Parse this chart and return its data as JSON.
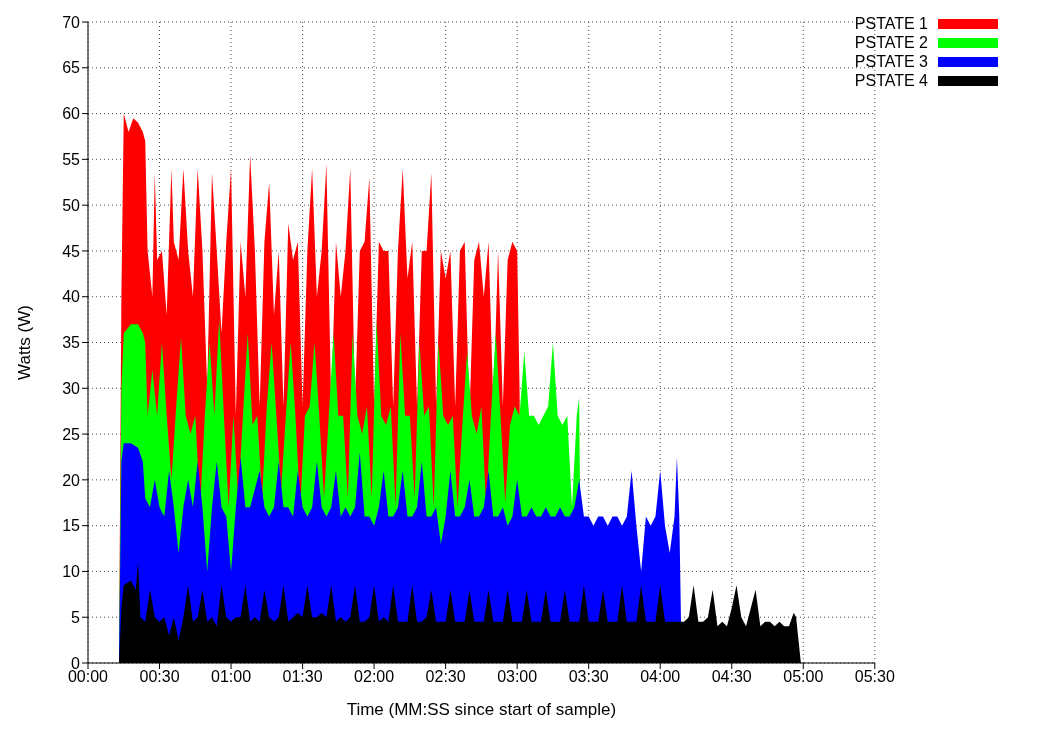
{
  "chart_data": {
    "type": "area",
    "xlabel": "Time (MM:SS since start of sample)",
    "ylabel": "Watts (W)",
    "xlim": [
      0,
      330
    ],
    "xticks": [
      {
        "value": 0,
        "label": "00:00"
      },
      {
        "value": 30,
        "label": "00:30"
      },
      {
        "value": 60,
        "label": "01:00"
      },
      {
        "value": 90,
        "label": "01:30"
      },
      {
        "value": 120,
        "label": "02:00"
      },
      {
        "value": 150,
        "label": "02:30"
      },
      {
        "value": 180,
        "label": "03:00"
      },
      {
        "value": 210,
        "label": "03:30"
      },
      {
        "value": 240,
        "label": "04:00"
      },
      {
        "value": 270,
        "label": "04:30"
      },
      {
        "value": 300,
        "label": "05:00"
      },
      {
        "value": 330,
        "label": "05:30"
      }
    ],
    "ylim": [
      0,
      70
    ],
    "yticks": [
      0,
      5,
      10,
      15,
      20,
      25,
      30,
      35,
      40,
      45,
      50,
      55,
      60,
      65,
      70
    ],
    "grid": true,
    "legend": "top right",
    "series": [
      {
        "name": "PSTATE 1",
        "color": "#ff0000",
        "x": [
          13,
          14,
          15,
          17,
          19,
          21,
          23,
          24,
          25,
          27,
          28,
          29,
          31,
          33,
          35,
          36,
          38,
          40,
          42,
          44,
          46,
          48,
          50,
          52,
          54,
          56,
          58,
          60,
          62,
          64,
          66,
          68,
          70,
          72,
          74,
          76,
          78,
          80,
          82,
          84,
          86,
          88,
          90,
          92,
          94,
          96,
          98,
          100,
          102,
          104,
          106,
          108,
          110,
          112,
          114,
          116,
          118,
          120,
          122,
          124,
          126,
          128,
          130,
          132,
          134,
          136,
          138,
          140,
          142,
          144,
          146,
          148,
          150,
          152,
          154,
          156,
          158,
          160,
          162,
          164,
          166,
          168,
          170,
          172,
          174,
          176,
          178,
          180,
          181,
          182
        ],
        "values": [
          0,
          40,
          60,
          58,
          59.5,
          59,
          58,
          57,
          45,
          40,
          53.5,
          44,
          45,
          38,
          54,
          46,
          44,
          54,
          45,
          40,
          54,
          45,
          30,
          53.5,
          45,
          36,
          46,
          54,
          27,
          46,
          40,
          55.5,
          45,
          28,
          46,
          52.5,
          38,
          45,
          28,
          48,
          44,
          46,
          28,
          45,
          54,
          40,
          45,
          54.5,
          28,
          46,
          40,
          45,
          54,
          28,
          45,
          46,
          53,
          28,
          46,
          45,
          45,
          28,
          45,
          54,
          42,
          46,
          28,
          45,
          45,
          53.5,
          28,
          45,
          42,
          45,
          28,
          45,
          46,
          27,
          44,
          46,
          40,
          46,
          28,
          45,
          28,
          44,
          46,
          45,
          30,
          0
        ]
      },
      {
        "name": "PSTATE 2",
        "color": "#00ff00",
        "x": [
          13,
          14,
          15,
          18,
          21,
          23,
          24,
          25,
          27,
          29,
          31,
          33,
          35,
          37,
          39,
          41,
          43,
          45,
          47,
          49,
          51,
          53,
          55,
          57,
          59,
          61,
          63,
          65,
          67,
          69,
          71,
          73,
          75,
          77,
          79,
          81,
          83,
          85,
          87,
          89,
          91,
          93,
          95,
          97,
          99,
          101,
          103,
          105,
          107,
          109,
          111,
          113,
          115,
          117,
          119,
          121,
          123,
          125,
          127,
          129,
          131,
          133,
          135,
          137,
          139,
          141,
          143,
          145,
          147,
          149,
          151,
          153,
          155,
          157,
          159,
          161,
          163,
          165,
          167,
          169,
          171,
          173,
          175,
          177,
          179,
          181,
          183,
          185,
          187,
          189,
          191,
          193,
          195,
          197,
          199,
          201,
          203,
          205,
          206,
          207
        ],
        "values": [
          0,
          30,
          36,
          37,
          37,
          36,
          35,
          27,
          32,
          27,
          35,
          27,
          20,
          28,
          35.5,
          27,
          25,
          27,
          17,
          27,
          35,
          27,
          37.5,
          27,
          17,
          27,
          18,
          27,
          36,
          26,
          27,
          18,
          28,
          35,
          27,
          19,
          27,
          35,
          27,
          17,
          27,
          28,
          35,
          27,
          18,
          27,
          36,
          27,
          27,
          18,
          36,
          27,
          25,
          28,
          18,
          37.5,
          27,
          26,
          28,
          17,
          36,
          27,
          27,
          18,
          35,
          27,
          28,
          17,
          35,
          27,
          26,
          27,
          17,
          26,
          34,
          27,
          25,
          28,
          17,
          27,
          36,
          27,
          17.5,
          26,
          28,
          27,
          34,
          27,
          27,
          26,
          27,
          28,
          35,
          27,
          26,
          27,
          17,
          27,
          29,
          0
        ]
      },
      {
        "name": "PSTATE 3",
        "color": "#0000ff",
        "x": [
          13,
          14,
          15,
          18,
          21,
          23,
          24,
          26,
          28,
          30,
          32,
          34,
          36,
          38,
          40,
          42,
          44,
          46,
          48,
          50,
          52,
          54,
          56,
          58,
          60,
          62,
          64,
          66,
          68,
          70,
          72,
          74,
          76,
          78,
          80,
          82,
          84,
          86,
          88,
          90,
          92,
          94,
          96,
          98,
          100,
          102,
          104,
          106,
          108,
          110,
          112,
          114,
          116,
          118,
          120,
          122,
          124,
          126,
          128,
          130,
          132,
          134,
          136,
          138,
          140,
          142,
          144,
          146,
          148,
          150,
          152,
          154,
          156,
          158,
          160,
          162,
          164,
          166,
          168,
          170,
          172,
          174,
          176,
          178,
          180,
          182,
          184,
          186,
          188,
          190,
          192,
          194,
          196,
          198,
          200,
          202,
          204,
          206,
          208,
          210,
          212,
          214,
          216,
          218,
          220,
          222,
          224,
          226,
          228,
          230,
          232,
          234,
          236,
          238,
          240,
          242,
          244,
          246,
          247,
          248,
          249
        ],
        "values": [
          0,
          22,
          24,
          24,
          23.5,
          22,
          18,
          17,
          20,
          17,
          16,
          21,
          17,
          12,
          17,
          20,
          17,
          22,
          17,
          10,
          17,
          22,
          17,
          16,
          10,
          17,
          22.5,
          17,
          17,
          19,
          21,
          17,
          16,
          17,
          22,
          17,
          17,
          16,
          21,
          17,
          16,
          17,
          22,
          17,
          16,
          17,
          21,
          16,
          17,
          16,
          17,
          23,
          16,
          16,
          15,
          17,
          21,
          16,
          16,
          17,
          21,
          16,
          16,
          17,
          22,
          16,
          16,
          17,
          13,
          16,
          21,
          16,
          16,
          17,
          20,
          16,
          16,
          17,
          21,
          16,
          16,
          17,
          15,
          16,
          20,
          16,
          16,
          17,
          16,
          16,
          17,
          16,
          16,
          17,
          16,
          16,
          17,
          20,
          16,
          16,
          15,
          16,
          16,
          15,
          16,
          16,
          15,
          16,
          21,
          15,
          10,
          16,
          15,
          16,
          21,
          15,
          12,
          16,
          22.5,
          16,
          0
        ]
      },
      {
        "name": "PSTATE 4",
        "color": "#000000",
        "x": [
          13,
          14,
          15,
          18,
          20,
          21,
          22,
          24,
          26,
          28,
          30,
          32,
          34,
          36,
          38,
          40,
          42,
          44,
          46,
          48,
          50,
          52,
          54,
          56,
          58,
          60,
          62,
          64,
          66,
          68,
          70,
          72,
          74,
          76,
          78,
          80,
          82,
          84,
          86,
          88,
          90,
          92,
          94,
          96,
          98,
          100,
          102,
          104,
          106,
          108,
          110,
          112,
          114,
          116,
          118,
          120,
          122,
          124,
          126,
          128,
          130,
          132,
          134,
          136,
          138,
          140,
          142,
          144,
          146,
          148,
          150,
          152,
          154,
          156,
          158,
          160,
          162,
          164,
          166,
          168,
          170,
          172,
          174,
          176,
          178,
          180,
          182,
          184,
          186,
          188,
          190,
          192,
          194,
          196,
          198,
          200,
          202,
          204,
          206,
          208,
          210,
          212,
          214,
          216,
          218,
          220,
          222,
          224,
          226,
          228,
          230,
          232,
          234,
          236,
          238,
          240,
          242,
          244,
          246,
          248,
          250,
          252,
          254,
          256,
          258,
          260,
          262,
          264,
          266,
          268,
          270,
          272,
          274,
          276,
          278,
          280,
          282,
          284,
          286,
          288,
          290,
          292,
          294,
          296,
          297,
          299
        ],
        "values": [
          0,
          6,
          8.5,
          9,
          8,
          11,
          5,
          4.5,
          8,
          5,
          4.5,
          5,
          3,
          5,
          2.5,
          5,
          8.5,
          4.5,
          5,
          8,
          4.5,
          5,
          4,
          8.5,
          5,
          4.5,
          5,
          5,
          8.5,
          4.5,
          5,
          4.5,
          8,
          5,
          4.5,
          5,
          8.5,
          4.5,
          5,
          5.5,
          5,
          8.5,
          5,
          5,
          5.5,
          5,
          8.5,
          4.5,
          5,
          4.5,
          5,
          8.5,
          4.5,
          4.5,
          5,
          8.5,
          4.5,
          5,
          4.5,
          8.5,
          4.5,
          4.5,
          4.5,
          8.5,
          4.5,
          4.5,
          5,
          8,
          4.5,
          4.5,
          4.5,
          8,
          4.5,
          4.5,
          4.5,
          8,
          4.5,
          4.5,
          4.5,
          8,
          4.5,
          4.5,
          4.5,
          8,
          4.5,
          4.5,
          4.5,
          8,
          4.5,
          4.5,
          4.5,
          8,
          4.5,
          4.5,
          4.5,
          8,
          4.5,
          4.5,
          4.5,
          8.5,
          4.5,
          4.5,
          4.5,
          8,
          4.5,
          4.5,
          4.5,
          8.5,
          4.5,
          4.5,
          4.5,
          8.5,
          4.5,
          4.5,
          4.5,
          8.5,
          4.5,
          4.5,
          4.5,
          4.5,
          4.5,
          5,
          8.5,
          4.5,
          4.5,
          5,
          8,
          4,
          4.5,
          4,
          6,
          8.5,
          5,
          4,
          6,
          8,
          4,
          4.5,
          4.5,
          4,
          4.5,
          4,
          4,
          5.5,
          5,
          0
        ]
      }
    ]
  }
}
